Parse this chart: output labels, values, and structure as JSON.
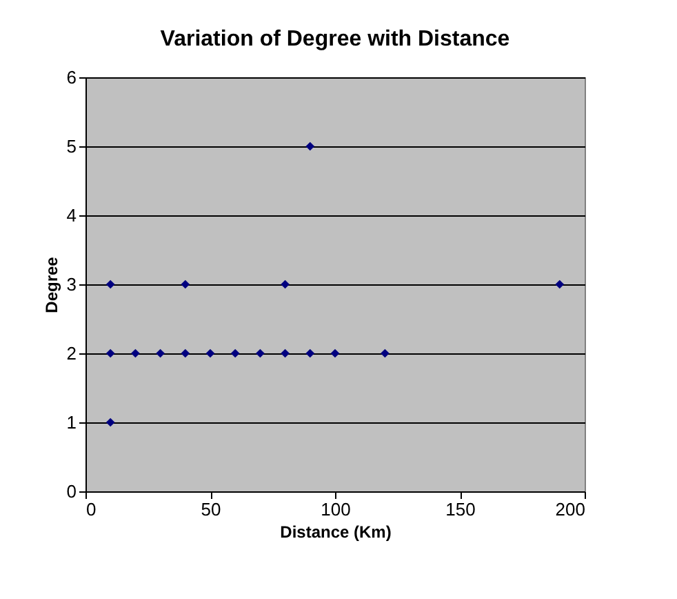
{
  "chart_data": {
    "type": "scatter",
    "title": "Variation of Degree with Distance",
    "xlabel": "Distance (Km)",
    "ylabel": "Degree",
    "x": [
      10,
      10,
      10,
      20,
      30,
      40,
      40,
      50,
      60,
      70,
      80,
      80,
      90,
      90,
      100,
      120,
      190
    ],
    "series": [
      {
        "color": "#000080",
        "values": [
          3,
          2,
          1,
          2,
          2,
          2,
          3,
          2,
          2,
          2,
          2,
          3,
          2,
          5,
          2,
          2,
          3
        ]
      }
    ],
    "xlim": [
      0,
      200
    ],
    "xticks": [
      0,
      50,
      100,
      150,
      200
    ],
    "ylim": [
      0,
      6
    ],
    "yticks": [
      0,
      1,
      2,
      3,
      4,
      5,
      6
    ],
    "grid": "y",
    "marker": "diamond"
  }
}
